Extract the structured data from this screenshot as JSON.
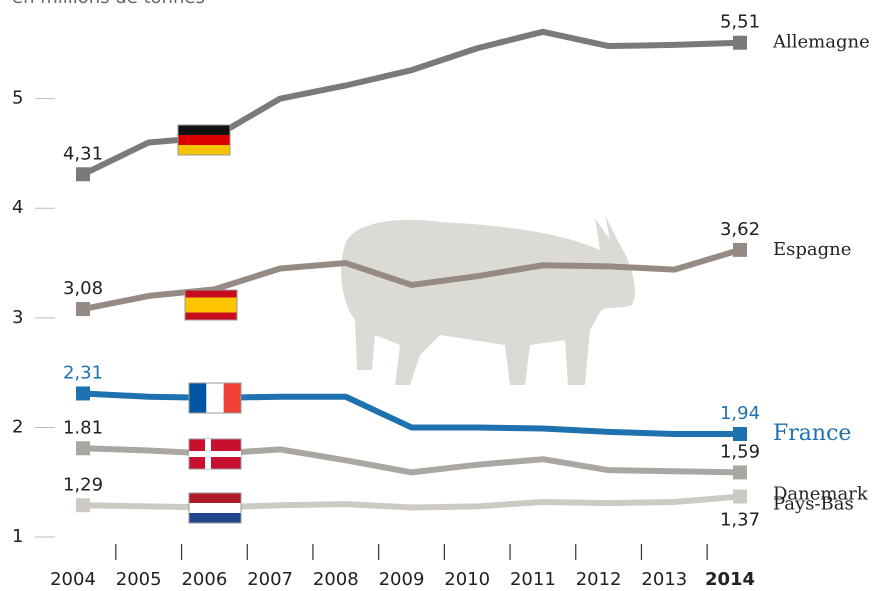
{
  "chart_data": {
    "type": "line",
    "subtitle": "en millions de tonnes",
    "categories": [
      "2004",
      "2005",
      "2006",
      "2007",
      "2008",
      "2009",
      "2010",
      "2011",
      "2012",
      "2013",
      "2014"
    ],
    "series": [
      {
        "name": "Allemagne",
        "color": "#7a7a7c",
        "values": [
          4.31,
          4.6,
          4.65,
          5.0,
          5.12,
          5.26,
          5.46,
          5.61,
          5.48,
          5.49,
          5.51
        ],
        "value_labels": [
          "4,31",
          null,
          null,
          null,
          null,
          null,
          null,
          null,
          null,
          null,
          "5,51"
        ]
      },
      {
        "name": "Espagne",
        "color": "#958a84",
        "values": [
          3.08,
          3.2,
          3.26,
          3.45,
          3.5,
          3.3,
          3.38,
          3.48,
          3.47,
          3.44,
          3.62
        ],
        "value_labels": [
          "3,08",
          null,
          null,
          null,
          null,
          null,
          null,
          null,
          null,
          null,
          "3,62"
        ]
      },
      {
        "name": "France",
        "color": "#1f72b0",
        "values": [
          2.31,
          2.28,
          2.27,
          2.28,
          2.28,
          2.0,
          2.0,
          1.99,
          1.96,
          1.94,
          1.94
        ],
        "value_labels": [
          "2,31",
          null,
          null,
          null,
          null,
          null,
          null,
          null,
          null,
          null,
          "1,94"
        ]
      },
      {
        "name": "Danemark",
        "color": "#aaa6a2",
        "values": [
          1.81,
          1.79,
          1.76,
          1.8,
          1.7,
          1.59,
          1.66,
          1.71,
          1.61,
          1.6,
          1.59
        ],
        "value_labels": [
          "1.81",
          null,
          null,
          null,
          null,
          null,
          null,
          null,
          null,
          null,
          "1,59"
        ]
      },
      {
        "name": "Pays-Bas",
        "color": "#cdcac4",
        "values": [
          1.29,
          1.28,
          1.27,
          1.29,
          1.3,
          1.27,
          1.28,
          1.32,
          1.31,
          1.32,
          1.37
        ],
        "value_labels": [
          "1,29",
          null,
          null,
          null,
          null,
          null,
          null,
          null,
          null,
          null,
          "1,37"
        ]
      }
    ],
    "ylim": [
      0.9,
      5.9
    ],
    "yticks": [
      1,
      2,
      3,
      4,
      5
    ]
  }
}
